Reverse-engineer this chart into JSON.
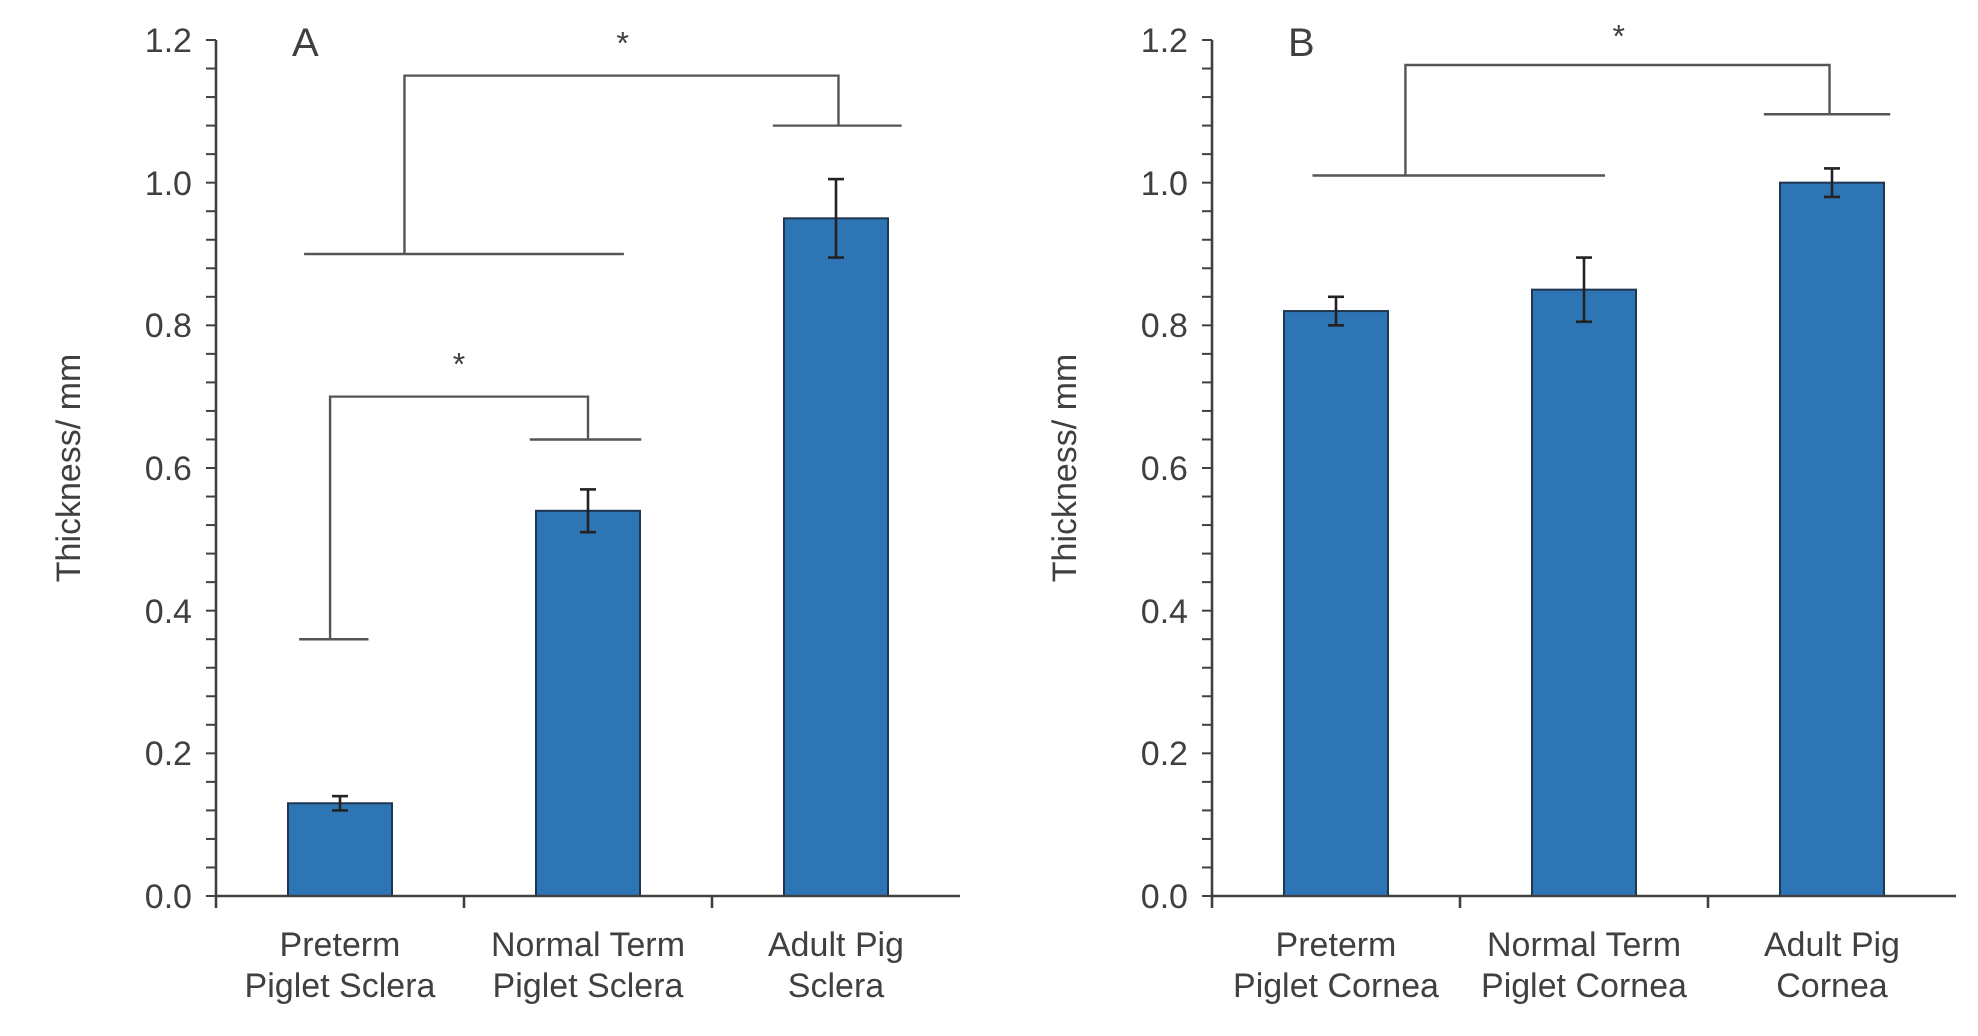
{
  "chart_data": [
    {
      "type": "bar",
      "title": "A",
      "ylabel": "Thickness/ mm",
      "categories": [
        "Preterm\nPiglet Sclera",
        "Normal Term\nPiglet Sclera",
        "Adult Pig\nSclera"
      ],
      "values": [
        0.13,
        0.54,
        0.95
      ],
      "errors": [
        0.01,
        0.03,
        0.055
      ],
      "color": "#2e75b6",
      "ylim": [
        0,
        1.2
      ],
      "yticks": [
        {
          "value": 0,
          "label": "0.0"
        },
        {
          "value": 0.04,
          "label": null
        },
        {
          "value": 0.08,
          "label": null
        },
        {
          "value": 0.12,
          "label": null
        },
        {
          "value": 0.16,
          "label": null
        },
        {
          "value": 0.2,
          "label": "0.2"
        },
        {
          "value": 0.24,
          "label": null
        },
        {
          "value": 0.28,
          "label": null
        },
        {
          "value": 0.32,
          "label": null
        },
        {
          "value": 0.36,
          "label": null
        },
        {
          "value": 0.4,
          "label": "0.4"
        },
        {
          "value": 0.44,
          "label": null
        },
        {
          "value": 0.48,
          "label": null
        },
        {
          "value": 0.52,
          "label": null
        },
        {
          "value": 0.56,
          "label": null
        },
        {
          "value": 0.6,
          "label": "0.6"
        },
        {
          "value": 0.64,
          "label": null
        },
        {
          "value": 0.68,
          "label": null
        },
        {
          "value": 0.72,
          "label": null
        },
        {
          "value": 0.76,
          "label": null
        },
        {
          "value": 0.8,
          "label": "0.8"
        },
        {
          "value": 0.84,
          "label": null
        },
        {
          "value": 0.88,
          "label": null
        },
        {
          "value": 0.92,
          "label": null
        },
        {
          "value": 0.96,
          "label": null
        },
        {
          "value": 1,
          "label": "1.0"
        },
        {
          "value": 1.04,
          "label": null
        },
        {
          "value": 1.08,
          "label": null
        },
        {
          "value": 1.12,
          "label": null
        },
        {
          "value": 1.16,
          "label": null
        },
        {
          "value": 1.2,
          "label": "1.2"
        }
      ],
      "annotations": [
        "*",
        "*"
      ]
    },
    {
      "type": "bar",
      "title": "B",
      "ylabel": "Thickness/ mm",
      "categories": [
        "Preterm\nPiglet Cornea",
        "Normal Term\nPiglet Cornea",
        "Adult Pig\nCornea"
      ],
      "values": [
        0.82,
        0.85,
        1.0
      ],
      "errors": [
        0.02,
        0.045,
        0.02
      ],
      "color": "#2e75b6",
      "ylim": [
        0,
        1.2
      ],
      "yticks": [
        {
          "value": 0,
          "label": "0.0"
        },
        {
          "value": 0.04,
          "label": null
        },
        {
          "value": 0.08,
          "label": null
        },
        {
          "value": 0.12,
          "label": null
        },
        {
          "value": 0.16,
          "label": null
        },
        {
          "value": 0.2,
          "label": "0.2"
        },
        {
          "value": 0.24,
          "label": null
        },
        {
          "value": 0.28,
          "label": null
        },
        {
          "value": 0.32,
          "label": null
        },
        {
          "value": 0.36,
          "label": null
        },
        {
          "value": 0.4,
          "label": "0.4"
        },
        {
          "value": 0.44,
          "label": null
        },
        {
          "value": 0.48,
          "label": null
        },
        {
          "value": 0.52,
          "label": null
        },
        {
          "value": 0.56,
          "label": null
        },
        {
          "value": 0.6,
          "label": "0.6"
        },
        {
          "value": 0.64,
          "label": null
        },
        {
          "value": 0.68,
          "label": null
        },
        {
          "value": 0.72,
          "label": null
        },
        {
          "value": 0.76,
          "label": null
        },
        {
          "value": 0.8,
          "label": "0.8"
        },
        {
          "value": 0.84,
          "label": null
        },
        {
          "value": 0.88,
          "label": null
        },
        {
          "value": 0.92,
          "label": null
        },
        {
          "value": 0.96,
          "label": null
        },
        {
          "value": 1,
          "label": "1.0"
        },
        {
          "value": 1.04,
          "label": null
        },
        {
          "value": 1.08,
          "label": null
        },
        {
          "value": 1.12,
          "label": null
        },
        {
          "value": 1.16,
          "label": null
        },
        {
          "value": 1.2,
          "label": "1.2"
        }
      ],
      "annotations": [
        "*"
      ]
    }
  ]
}
